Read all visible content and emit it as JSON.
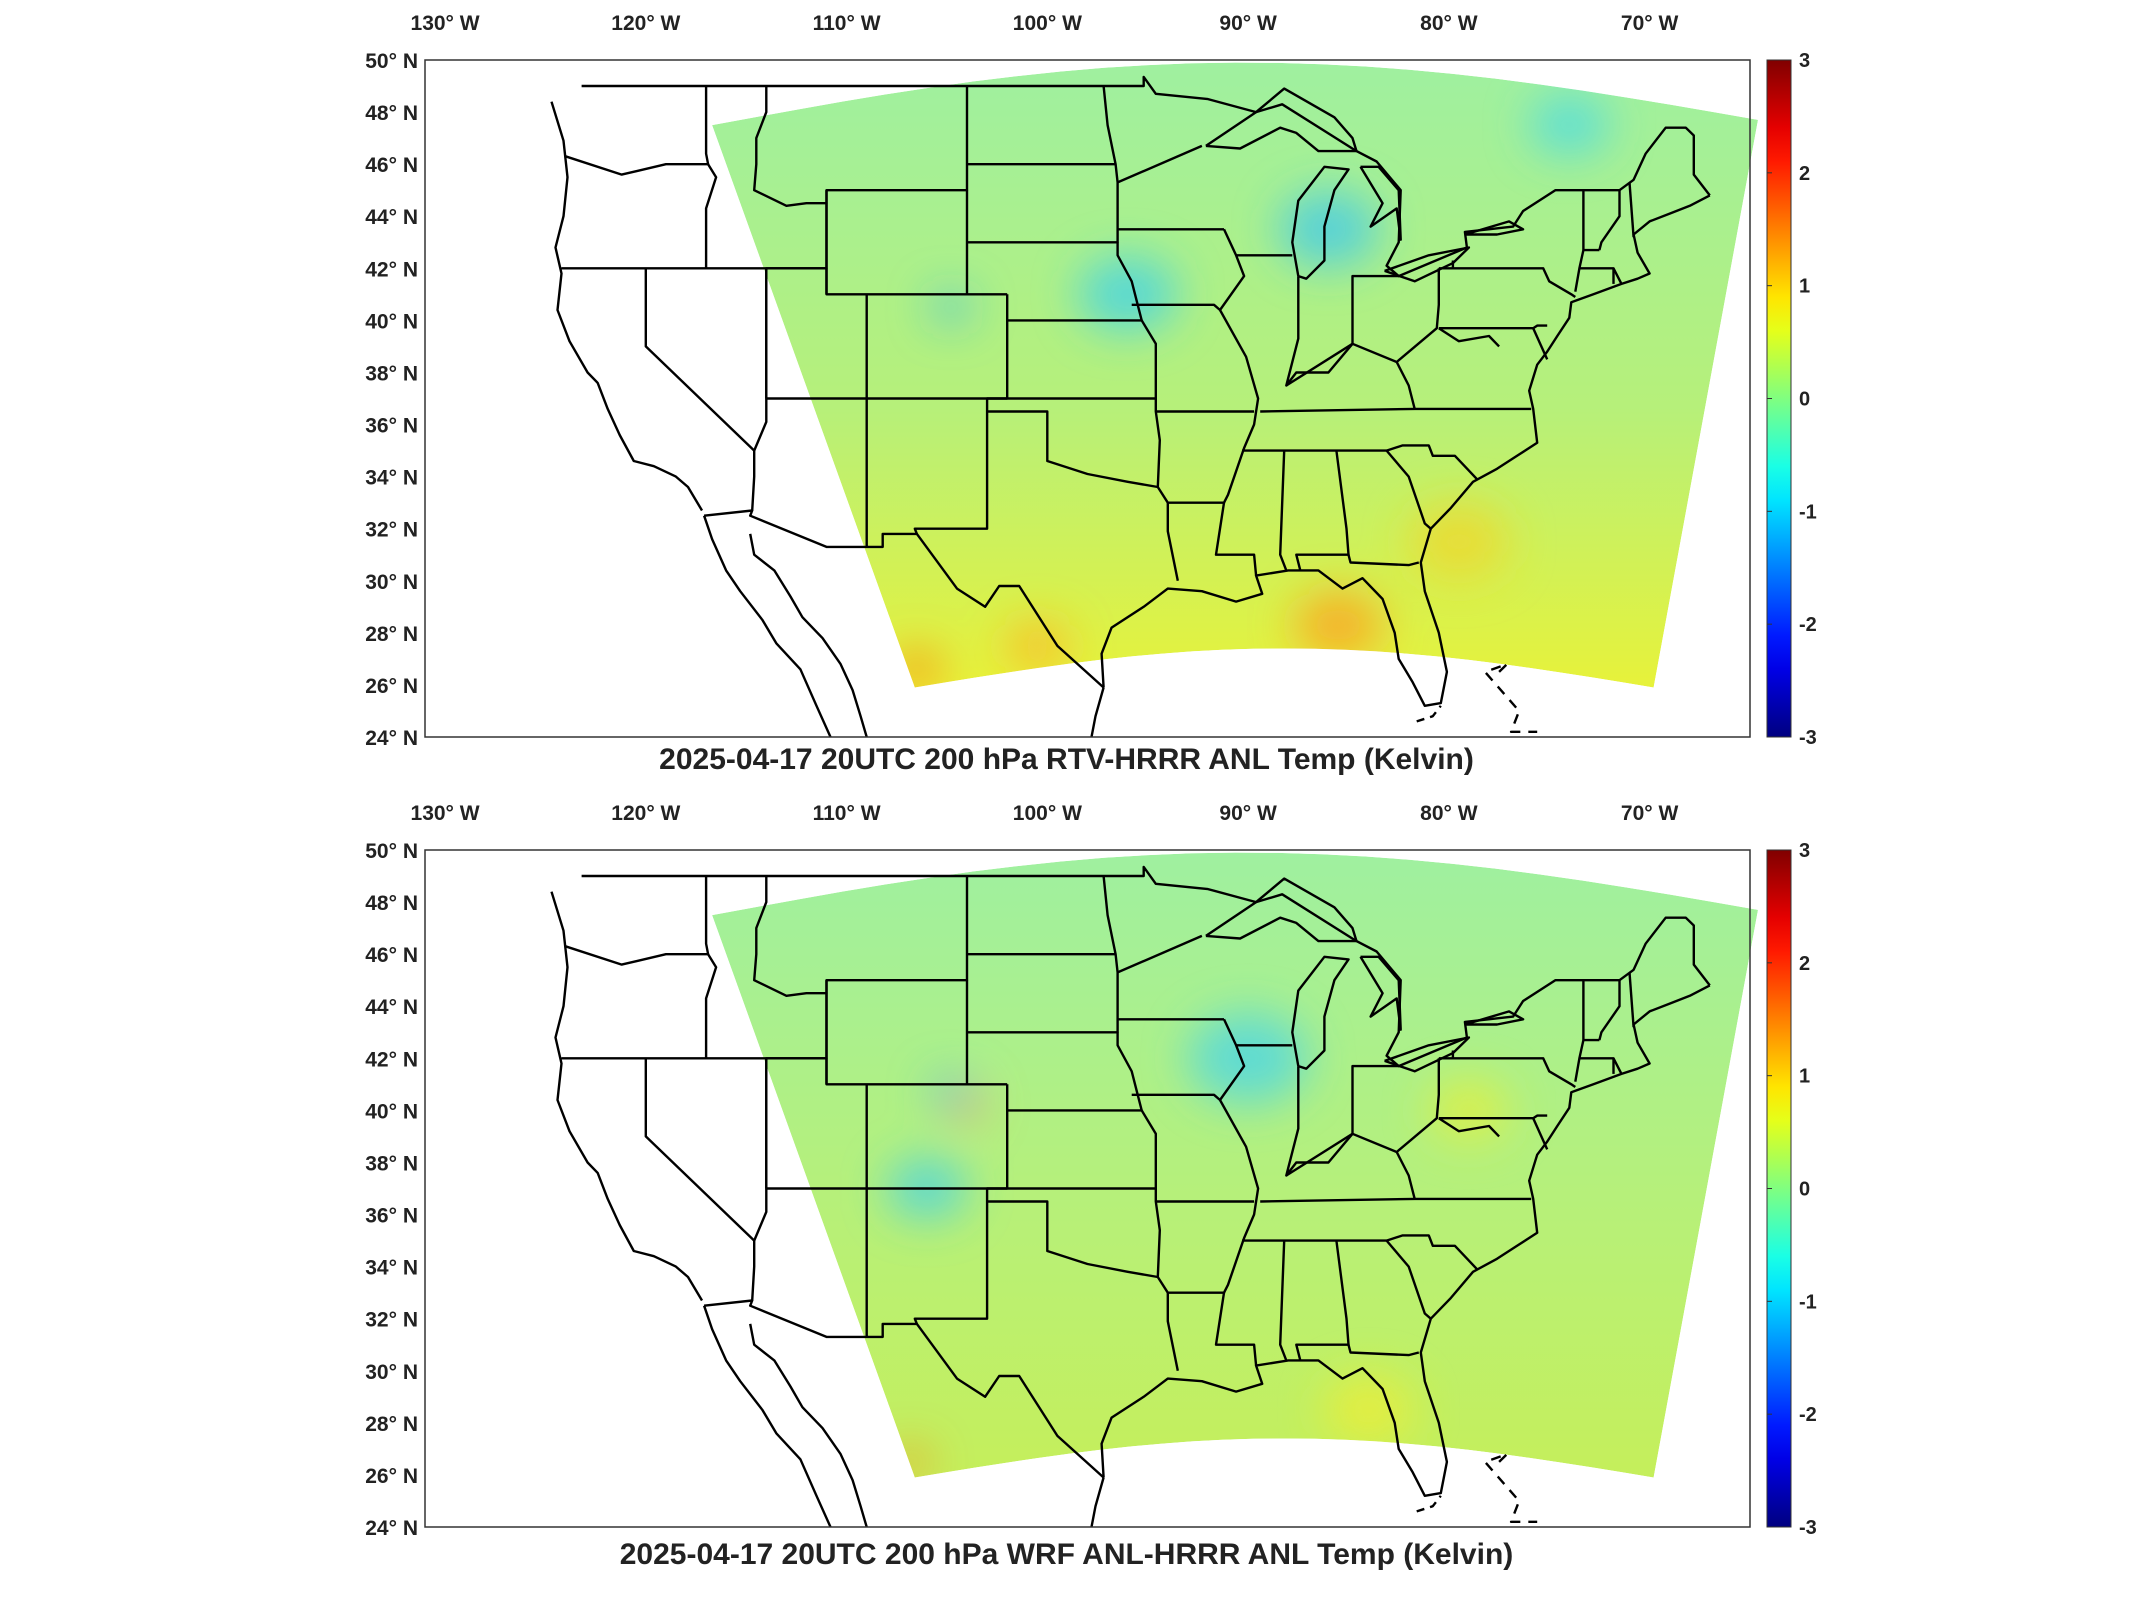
{
  "panels": [
    {
      "title": "2025-04-17 20UTC 200 hPa RTV-HRRR ANL Temp (Kelvin)",
      "field_tint": "#e7f23a",
      "hotspots": [
        {
          "color": "#ff9a1a",
          "lon": -85.5,
          "lat": 28.3,
          "r": 2.2
        },
        {
          "color": "#ff7a12",
          "lon": -106.5,
          "lat": 26.6,
          "r": 1.2
        },
        {
          "color": "#ffb020",
          "lon": -100.5,
          "lat": 27.5,
          "r": 1.6
        },
        {
          "color": "#f2d528",
          "lon": -79.5,
          "lat": 31.5,
          "r": 2.5
        },
        {
          "color": "#2fb6f0",
          "lon": -104.8,
          "lat": 40.5,
          "r": 1.0
        },
        {
          "color": "#38c7f0",
          "lon": -86,
          "lat": 43.5,
          "r": 2.5
        },
        {
          "color": "#3ad0ee",
          "lon": -96,
          "lat": 41,
          "r": 2.5
        },
        {
          "color": "#45d8e8",
          "lon": -74,
          "lat": 47.5,
          "r": 2.0
        }
      ]
    },
    {
      "title": "2025-04-17 20UTC 200 hPa WRF ANL-HRRR ANL Temp (Kelvin)",
      "field_tint": "#c5ef5b",
      "hotspots": [
        {
          "color": "#ff8c1a",
          "lon": -104,
          "lat": 40.2,
          "r": 0.9
        },
        {
          "color": "#ff7a12",
          "lon": -106.8,
          "lat": 26.5,
          "r": 0.9
        },
        {
          "color": "#2fb6f0",
          "lon": -104.8,
          "lat": 40.7,
          "r": 1.0
        },
        {
          "color": "#f0ee30",
          "lon": -84,
          "lat": 28.5,
          "r": 2.2
        },
        {
          "color": "#45d4ea",
          "lon": -90,
          "lat": 42,
          "r": 3.0
        },
        {
          "color": "#3ccfee",
          "lon": -106,
          "lat": 37,
          "r": 2.0
        },
        {
          "color": "#e8ef36",
          "lon": -79,
          "lat": 40,
          "r": 2.0
        }
      ]
    }
  ],
  "lon_ticks": [
    "130° W",
    "120° W",
    "110° W",
    "100° W",
    "90° W",
    "80° W",
    "70° W"
  ],
  "lat_ticks": [
    "50° N",
    "48° N",
    "46° N",
    "44° N",
    "42° N",
    "40° N",
    "38° N",
    "36° N",
    "34° N",
    "32° N",
    "30° N",
    "28° N",
    "26° N",
    "24° N"
  ],
  "colorbar": {
    "range": [
      -3,
      3
    ],
    "ticks": [
      "3",
      "2",
      "1",
      "0",
      "-1",
      "-2",
      "-3"
    ],
    "colormap": "jet"
  }
}
